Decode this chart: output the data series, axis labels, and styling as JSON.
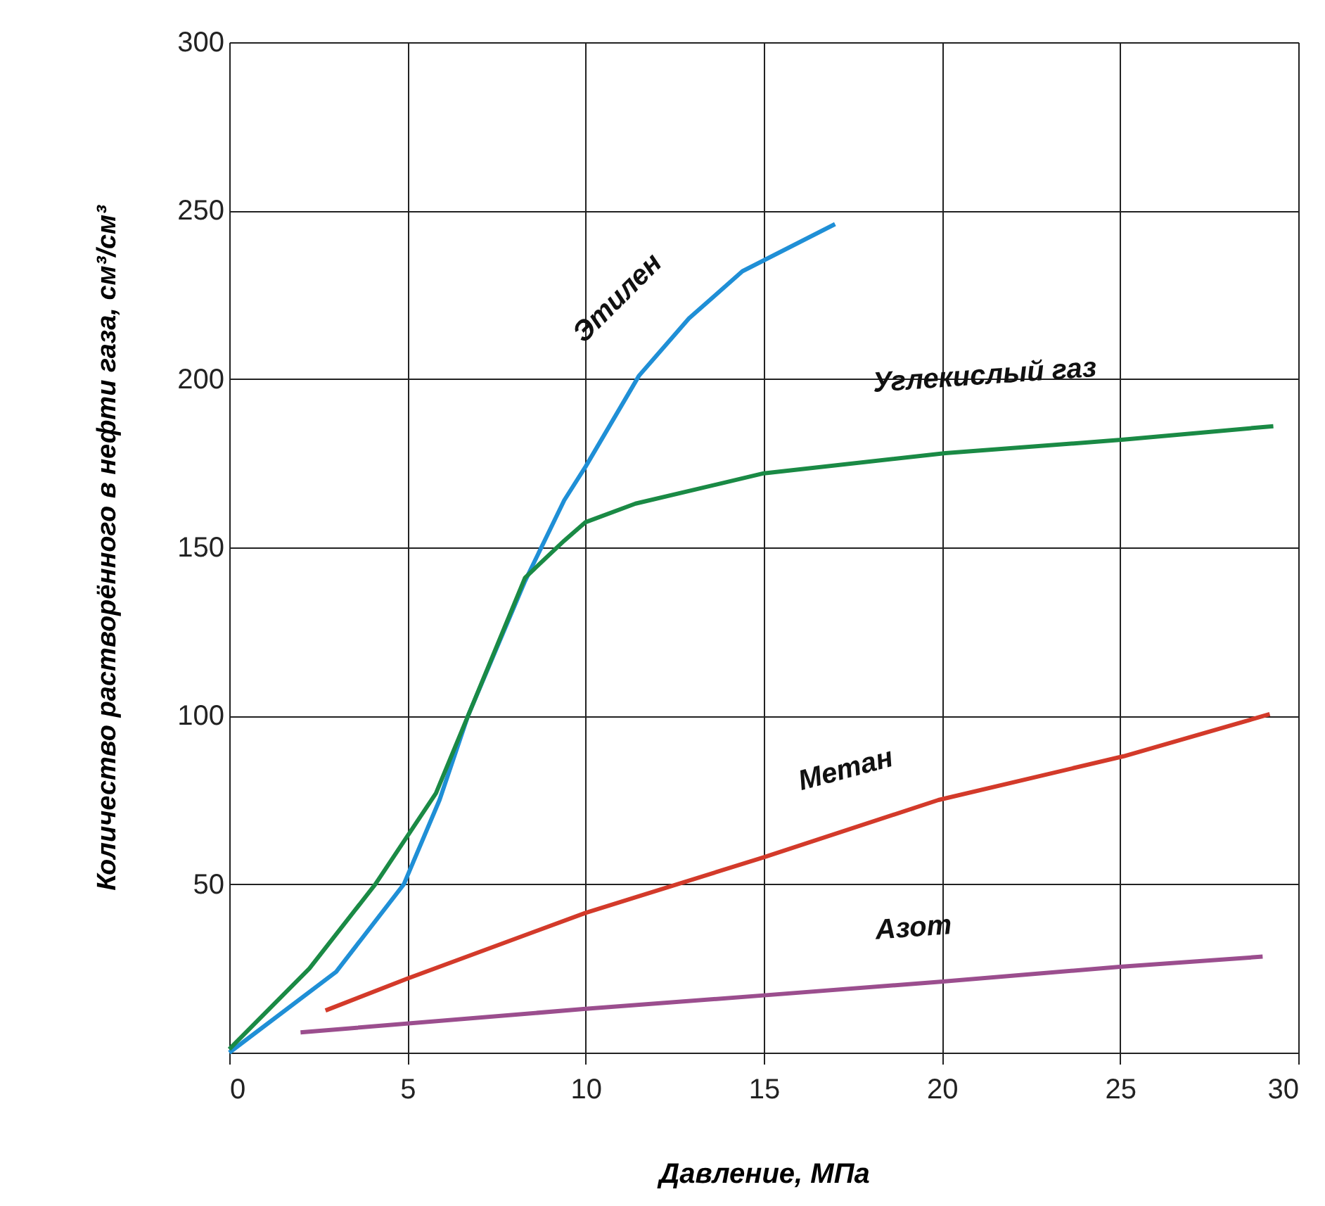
{
  "chart_data": {
    "type": "line",
    "xlabel": "Давление, МПа",
    "ylabel": "Количество растворённого в нефти газа,  см³/см³",
    "xlim": [
      0,
      30
    ],
    "xticks": [
      0,
      5,
      10,
      15,
      20,
      25,
      30
    ],
    "ylim": [
      0,
      300
    ],
    "yticks": [
      50,
      100,
      150,
      200,
      250,
      300
    ],
    "grid": true,
    "marker": "none",
    "line_style": "solid",
    "series": [
      {
        "name": "Этилен",
        "color": "#1f8fd6",
        "x": [
          0,
          3.0,
          4.9,
          5.9,
          6.7,
          8.3,
          9.4,
          10,
          11.5,
          12.9,
          14.4,
          17.0
        ],
        "values": [
          0,
          24,
          50,
          75,
          100,
          140,
          164,
          174,
          201,
          218,
          232,
          246
        ]
      },
      {
        "name": "Углекислый газ",
        "color": "#1a8a45",
        "x": [
          0,
          2.25,
          4.1,
          5.8,
          6.7,
          8.3,
          9.4,
          10,
          11.4,
          15,
          20.1,
          25.1,
          29.3
        ],
        "values": [
          1,
          25,
          50,
          77,
          100,
          141,
          152,
          157.5,
          163,
          172,
          178,
          182,
          186
        ]
      },
      {
        "name": "Метан",
        "color": "#d33a2a",
        "x": [
          2.7,
          5,
          10,
          15,
          19.9,
          25.1,
          29.2
        ],
        "values": [
          12.5,
          22,
          41.5,
          58,
          75,
          88,
          100.5
        ]
      },
      {
        "name": "Азот",
        "color": "#9b4e8e",
        "x": [
          2.0,
          10,
          15,
          19.9,
          25,
          29
        ],
        "values": [
          6,
          13,
          17,
          21,
          25.5,
          28.5
        ]
      }
    ]
  }
}
